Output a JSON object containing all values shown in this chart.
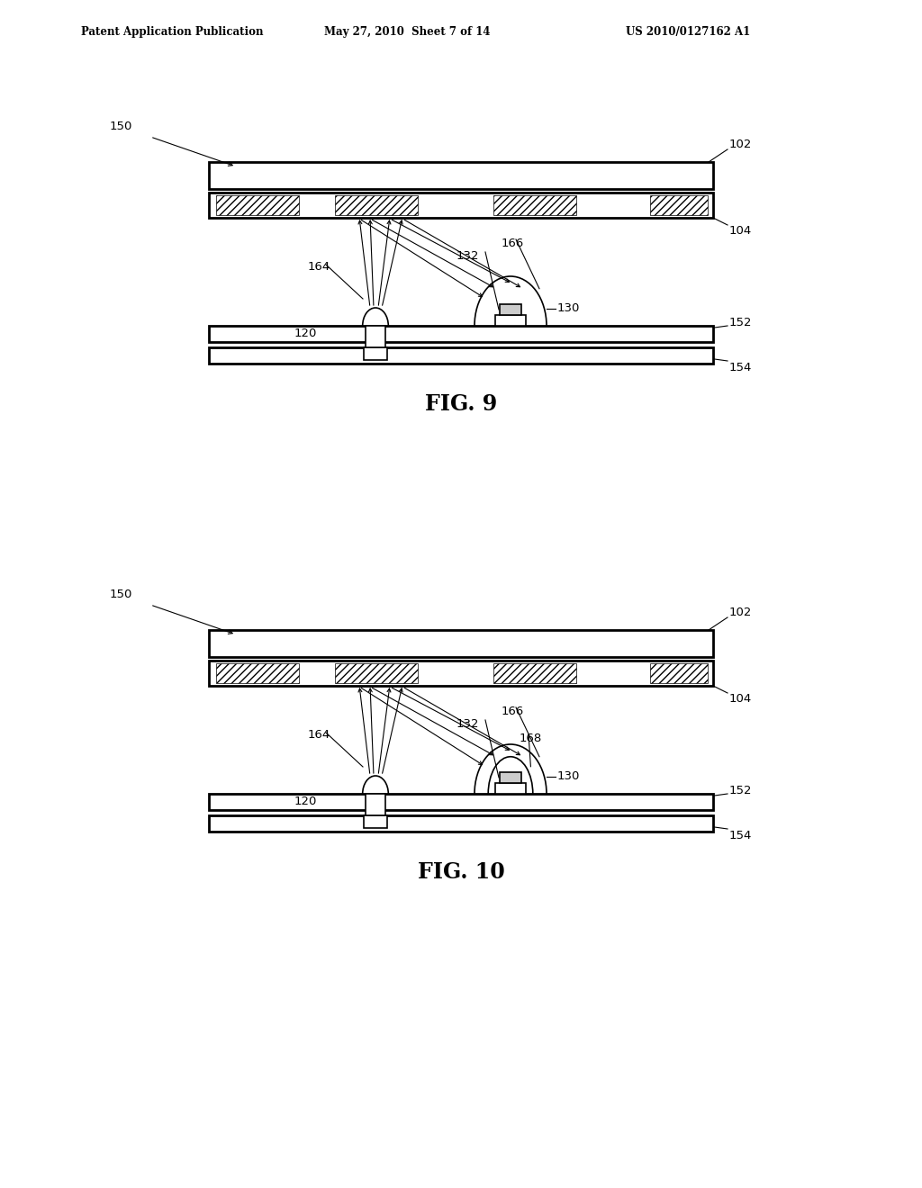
{
  "bg_color": "#ffffff",
  "line_color": "#000000",
  "header_text": "Patent Application Publication",
  "header_date": "May 27, 2010  Sheet 7 of 14",
  "header_patent": "US 2010/0127162 A1",
  "fig9_label": "FIG. 9",
  "fig10_label": "FIG. 10"
}
